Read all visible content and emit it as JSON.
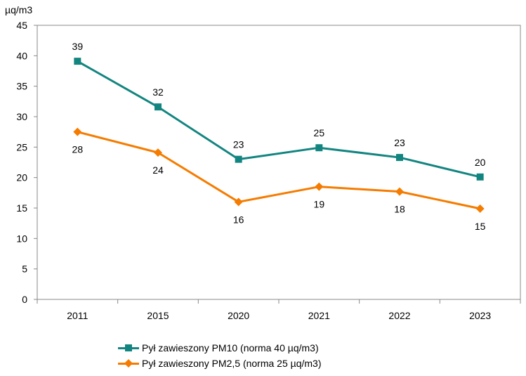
{
  "chart_data": {
    "type": "line",
    "ylabel": "µq/m3",
    "categories": [
      "2011",
      "2015",
      "2020",
      "2021",
      "2022",
      "2023"
    ],
    "ylim": [
      0,
      45
    ],
    "yticks": [
      0,
      5,
      10,
      15,
      20,
      25,
      30,
      35,
      40,
      45
    ],
    "grid": false,
    "legend_position": "bottom",
    "series": [
      {
        "name": "Pył zawieszony PM10  (norma 40 µq/m3)",
        "values": [
          39.1,
          31.6,
          23.0,
          24.9,
          23.3,
          20.1
        ],
        "labels": [
          "39",
          "32",
          "23",
          "25",
          "23",
          "20"
        ],
        "label_position": "above",
        "color": "#138580",
        "marker": "square"
      },
      {
        "name": "Pył zawieszony PM2,5  (norma 25 µq/m3)",
        "values": [
          27.5,
          24.1,
          16.0,
          18.5,
          17.7,
          14.9
        ],
        "labels": [
          "28",
          "24",
          "16",
          "19",
          "18",
          "15"
        ],
        "label_position": "below",
        "color": "#F57C00",
        "marker": "diamond"
      }
    ]
  }
}
